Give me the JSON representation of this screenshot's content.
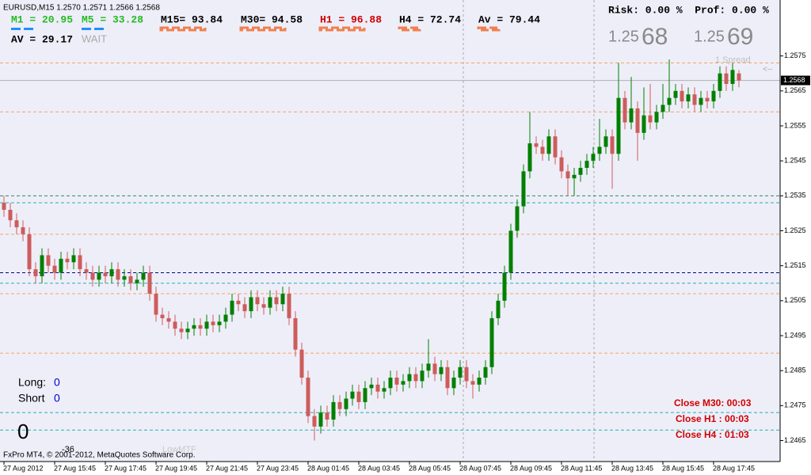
{
  "chart_data": {
    "type": "candlestick",
    "title": "EURUSD,M15  1.2570 1.2571 1.2566 1.2568",
    "categories": [
      "27 Aug 2012",
      null,
      null,
      null,
      null,
      null,
      null,
      null,
      "27 Aug 15:45",
      null,
      null,
      null,
      null,
      null,
      null,
      null,
      "27 Aug 17:45",
      null,
      null,
      null,
      null,
      null,
      null,
      null,
      "27 Aug 19:45",
      null,
      null,
      null,
      null,
      null,
      null,
      null,
      "27 Aug 21:45",
      null,
      null,
      null,
      null,
      null,
      null,
      null,
      "27 Aug 23:45",
      null,
      null,
      null,
      null,
      null,
      null,
      null,
      "28 Aug 01:45",
      null,
      null,
      null,
      null,
      null,
      null,
      null,
      "28 Aug 03:45",
      null,
      null,
      null,
      null,
      null,
      null,
      null,
      "28 Aug 05:45",
      null,
      null,
      null,
      null,
      null,
      null,
      null,
      "28 Aug 07:45",
      null,
      null,
      null,
      null,
      null,
      null,
      null,
      "28 Aug 09:45",
      null,
      null,
      null,
      null,
      null,
      null,
      null,
      "28 Aug 11:45",
      null,
      null,
      null,
      null,
      null,
      null,
      null,
      "28 Aug 13:45",
      null,
      null,
      null,
      null,
      null,
      null,
      null,
      "28 Aug 15:45",
      null,
      null,
      null,
      null,
      null,
      null,
      null,
      "28 Aug 17:45",
      null,
      null,
      null,
      null
    ],
    "open": [
      1.2533,
      1.2531,
      1.2528,
      1.2526,
      1.2524,
      1.2514,
      1.2512,
      1.2518,
      1.2515,
      1.2513,
      1.2517,
      1.2516,
      1.2518,
      1.2514,
      1.2513,
      1.2511,
      1.2513,
      1.2512,
      1.2514,
      1.2511,
      1.2512,
      1.251,
      1.2511,
      1.2513,
      1.2507,
      1.2501,
      1.25,
      1.2499,
      1.2497,
      1.2496,
      1.2497,
      1.2498,
      1.2497,
      1.2499,
      1.2498,
      1.2499,
      1.2501,
      1.2505,
      1.2504,
      1.2502,
      1.2506,
      1.2504,
      1.2503,
      1.2506,
      1.2504,
      1.2507,
      1.25,
      1.2491,
      1.2483,
      1.2472,
      1.2469,
      1.2473,
      1.2471,
      1.2476,
      1.2474,
      1.2477,
      1.2479,
      1.2476,
      1.248,
      1.2481,
      1.2479,
      1.248,
      1.2483,
      1.2481,
      1.2482,
      1.2484,
      1.2482,
      1.2485,
      1.2487,
      1.2484,
      1.2486,
      1.248,
      1.2483,
      1.2486,
      1.2482,
      1.2481,
      1.2483,
      1.2486,
      1.25,
      1.2505,
      1.2513,
      1.2525,
      1.2532,
      1.2542,
      1.255,
      1.2549,
      1.2547,
      1.2552,
      1.2546,
      1.2542,
      1.254,
      1.2541,
      1.2543,
      1.2545,
      1.2547,
      1.2549,
      1.2552,
      1.2547,
      1.2563,
      1.2556,
      1.256,
      1.2553,
      1.2558,
      1.2556,
      1.2559,
      1.2561,
      1.2563,
      1.2565,
      1.2562,
      1.2564,
      1.2561,
      1.2563,
      1.2562,
      1.2565,
      1.257,
      1.2567,
      1.257
    ],
    "high": [
      1.2535,
      1.2533,
      1.253,
      1.2528,
      1.2526,
      1.2516,
      1.252,
      1.252,
      1.2517,
      1.2519,
      1.2519,
      1.252,
      1.252,
      1.2516,
      1.2515,
      1.2515,
      1.2515,
      1.2516,
      1.2516,
      1.2514,
      1.2514,
      1.2513,
      1.2515,
      1.2515,
      1.2509,
      1.2503,
      1.2502,
      1.2501,
      1.2499,
      1.2499,
      1.25,
      1.25,
      1.2501,
      1.2501,
      1.2501,
      1.2503,
      1.2507,
      1.2507,
      1.2506,
      1.2508,
      1.2508,
      1.2506,
      1.2508,
      1.2508,
      1.2509,
      1.2509,
      1.2502,
      1.2493,
      1.2485,
      1.2474,
      1.2475,
      1.2475,
      1.2478,
      1.2478,
      1.2479,
      1.2481,
      1.2481,
      1.2482,
      1.2483,
      1.2483,
      1.2482,
      1.2485,
      1.2485,
      1.2484,
      1.2486,
      1.2486,
      1.2487,
      1.2494,
      1.2489,
      1.2488,
      1.2488,
      1.2485,
      1.2488,
      1.2488,
      1.2484,
      1.2485,
      1.2488,
      1.2502,
      1.2507,
      1.2515,
      1.2527,
      1.2534,
      1.2544,
      1.2559,
      1.2552,
      1.2551,
      1.2554,
      1.2554,
      1.2548,
      1.2544,
      1.2543,
      1.2545,
      1.2547,
      1.2549,
      1.2557,
      1.2554,
      1.2554,
      1.2573,
      1.2565,
      1.2569,
      1.2562,
      1.2566,
      1.2567,
      1.2561,
      1.2567,
      1.2574,
      1.2567,
      1.2567,
      1.2566,
      1.2566,
      1.2565,
      1.2565,
      1.2567,
      1.2572,
      1.2572,
      1.2573,
      1.2571
    ],
    "low": [
      1.2529,
      1.2526,
      1.2524,
      1.2522,
      1.2512,
      1.251,
      1.251,
      1.2513,
      1.2511,
      1.2511,
      1.2514,
      1.2514,
      1.2512,
      1.2511,
      1.2509,
      1.2509,
      1.251,
      1.251,
      1.2509,
      1.2509,
      1.2508,
      1.2508,
      1.2509,
      1.2505,
      1.2499,
      1.2498,
      1.2497,
      1.2495,
      1.2494,
      1.2494,
      1.2495,
      1.2495,
      1.2495,
      1.2496,
      1.2496,
      1.2497,
      1.2499,
      1.2502,
      1.25,
      1.25,
      1.2502,
      1.2501,
      1.2501,
      1.2502,
      1.2502,
      1.2498,
      1.2489,
      1.2481,
      1.247,
      1.2465,
      1.2467,
      1.2469,
      1.2469,
      1.2472,
      1.2472,
      1.2475,
      1.2474,
      1.2474,
      1.2478,
      1.2477,
      1.2477,
      1.2478,
      1.2479,
      1.2479,
      1.248,
      1.248,
      1.248,
      1.2483,
      1.2482,
      1.2482,
      1.2478,
      1.2478,
      1.2481,
      1.248,
      1.2477,
      1.2479,
      1.2481,
      1.2484,
      1.2498,
      1.2503,
      1.2511,
      1.2523,
      1.253,
      1.254,
      1.2547,
      1.2545,
      1.2545,
      1.2544,
      1.254,
      1.2535,
      1.2535,
      1.2539,
      1.2541,
      1.2543,
      1.2545,
      1.2547,
      1.2537,
      1.2545,
      1.2554,
      1.2554,
      1.2545,
      1.2551,
      1.2554,
      1.2554,
      1.2557,
      1.2559,
      1.2561,
      1.256,
      1.256,
      1.2559,
      1.2559,
      1.256,
      1.256,
      1.2563,
      1.2565,
      1.2565,
      1.2566
    ],
    "close": [
      1.2531,
      1.2528,
      1.2526,
      1.2524,
      1.2514,
      1.2512,
      1.2518,
      1.2515,
      1.2513,
      1.2517,
      1.2516,
      1.2518,
      1.2514,
      1.2513,
      1.2511,
      1.2513,
      1.2512,
      1.2514,
      1.2511,
      1.2512,
      1.251,
      1.2511,
      1.2513,
      1.2507,
      1.2501,
      1.25,
      1.2499,
      1.2497,
      1.2496,
      1.2497,
      1.2498,
      1.2497,
      1.2499,
      1.2498,
      1.2499,
      1.2501,
      1.2505,
      1.2504,
      1.2502,
      1.2506,
      1.2504,
      1.2503,
      1.2506,
      1.2504,
      1.2507,
      1.25,
      1.2491,
      1.2483,
      1.2472,
      1.2469,
      1.2473,
      1.2471,
      1.2476,
      1.2474,
      1.2477,
      1.2479,
      1.2476,
      1.248,
      1.2481,
      1.2479,
      1.248,
      1.2483,
      1.2481,
      1.2482,
      1.2484,
      1.2482,
      1.2485,
      1.2487,
      1.2484,
      1.2486,
      1.248,
      1.2483,
      1.2486,
      1.2482,
      1.2481,
      1.2483,
      1.2486,
      1.25,
      1.2505,
      1.2513,
      1.2525,
      1.2532,
      1.2542,
      1.255,
      1.2549,
      1.2547,
      1.2552,
      1.2546,
      1.2542,
      1.254,
      1.2541,
      1.2543,
      1.2545,
      1.2547,
      1.2549,
      1.2552,
      1.2547,
      1.2563,
      1.2556,
      1.256,
      1.2553,
      1.2558,
      1.2556,
      1.2559,
      1.2561,
      1.2563,
      1.2565,
      1.2562,
      1.2564,
      1.2561,
      1.2563,
      1.2562,
      1.2565,
      1.257,
      1.2567,
      1.2571,
      1.2568
    ],
    "up_color": "#008000",
    "down_color": "#cd5c5c",
    "ylim": [
      1.2459,
      1.2591
    ],
    "yticks": [
      1.2465,
      1.2475,
      1.2485,
      1.2495,
      1.2505,
      1.2515,
      1.2525,
      1.2535,
      1.2545,
      1.2555,
      1.2565,
      1.2575
    ],
    "last_price": 1.2568,
    "levels": [
      {
        "value": 1.2573,
        "color": "#f4a460",
        "style": "dashed"
      },
      {
        "value": 1.2559,
        "color": "#f4a460",
        "style": "dashed"
      },
      {
        "value": 1.2535,
        "color": "#2e8b57",
        "style": "dashed"
      },
      {
        "value": 1.2533,
        "color": "#20b2aa",
        "style": "dashed"
      },
      {
        "value": 1.2524,
        "color": "#f4a460",
        "style": "dashed"
      },
      {
        "value": 1.2513,
        "color": "#00008b",
        "style": "dashed"
      },
      {
        "value": 1.251,
        "color": "#20b2aa",
        "style": "dashed"
      },
      {
        "value": 1.2507,
        "color": "#f4a460",
        "style": "dashed"
      },
      {
        "value": 1.249,
        "color": "#f4a460",
        "style": "dashed"
      },
      {
        "value": 1.2473,
        "color": "#20b2aa",
        "style": "dashed"
      },
      {
        "value": 1.2468,
        "color": "#20b2aa",
        "style": "dashed"
      }
    ]
  },
  "panel": {
    "m1": "M1 = 20.95",
    "m5": "M5 = 33.28",
    "m15": "M15= 93.84",
    "m30": "M30= 94.58",
    "h1": "H1 = 96.88",
    "h4": "H4 = 72.74",
    "av": "Av = 79.44",
    "av2": "AV = 29.17",
    "signal": "WAIT",
    "risk": "Risk: 0.00 %  Prof: 0.00 %",
    "bid_big": "1.25",
    "bid_pips": "68",
    "ask_big": "1.25",
    "ask_pips": "69",
    "spread": "1 Spread",
    "arrow": "<--",
    "long_label": "Long:",
    "long_value": "0",
    "short_label": "Short",
    "short_value": "0",
    "counter": "0",
    "offset": "-36",
    "lowmtf": "LowMTF",
    "close_m30": "Close M30: 00:03",
    "close_h1": "Close H1 : 00:03",
    "close_h4": "Close H4 : 01:03",
    "copyright": "FxPro MT4, © 2001-2012, MetaQuotes Software Corp."
  }
}
